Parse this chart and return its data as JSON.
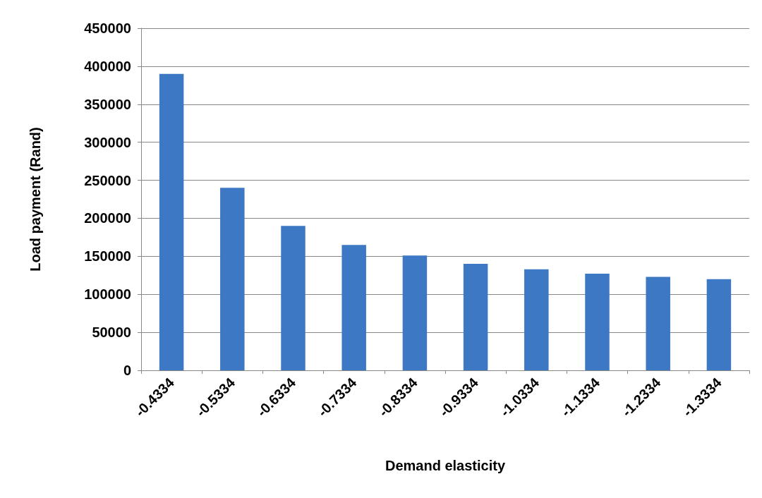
{
  "chart_data": {
    "type": "bar",
    "xlabel": "Demand elasticity",
    "ylabel": "Load payment (Rand)",
    "categories": [
      "-0.4334",
      "-0.5334",
      "-0.6334",
      "-0.7334",
      "-0.8334",
      "-0.9334",
      "-1.0334",
      "-1.1334",
      "-1.2334",
      "-1.3334"
    ],
    "values": [
      390000,
      240000,
      190000,
      165000,
      151000,
      140000,
      133000,
      127000,
      123000,
      120000
    ],
    "color": "#3c78c3",
    "ylim": [
      0,
      450000
    ],
    "yticks": [
      0,
      50000,
      100000,
      150000,
      200000,
      250000,
      300000,
      350000,
      400000,
      450000
    ],
    "grid": "y"
  }
}
